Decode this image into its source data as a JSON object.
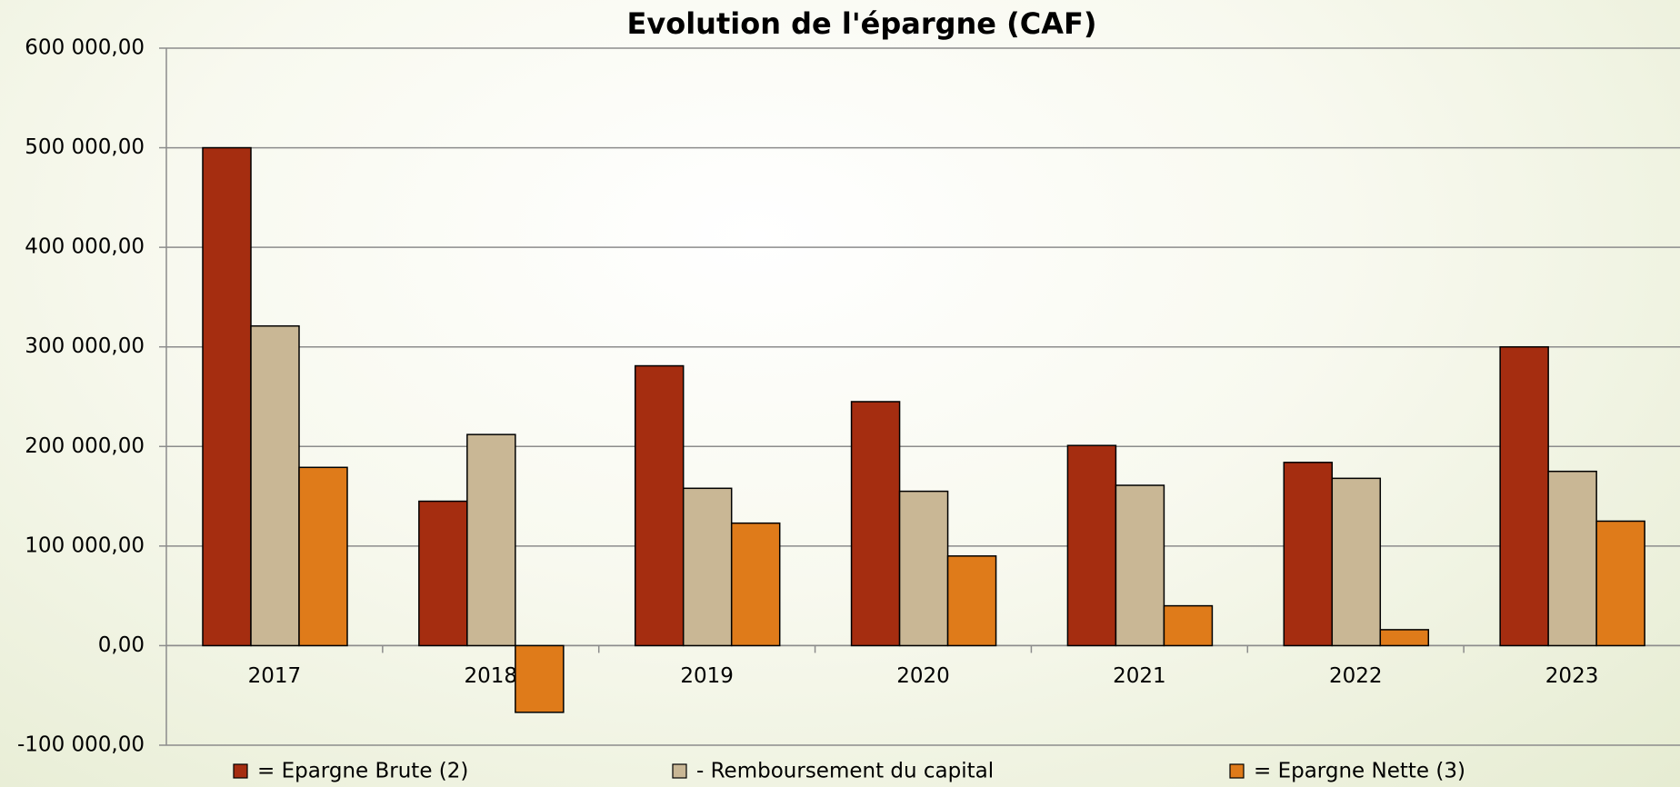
{
  "chart_data": {
    "type": "bar",
    "title": "Evolution de l'épargne (CAF)",
    "categories": [
      "2017",
      "2018",
      "2019",
      "2020",
      "2021",
      "2022",
      "2023"
    ],
    "series": [
      {
        "name": "= Epargne Brute (2)",
        "color": "#a52d10",
        "values": [
          500000,
          145000,
          281000,
          245000,
          201000,
          184000,
          300000
        ]
      },
      {
        "name": "- Remboursement du capital",
        "color": "#c9b795",
        "values": [
          321000,
          212000,
          158000,
          155000,
          161000,
          168000,
          175000
        ]
      },
      {
        "name": "= Epargne Nette (3)",
        "color": "#df7b1a",
        "values": [
          179000,
          -67000,
          123000,
          90000,
          40000,
          16000,
          125000
        ]
      }
    ],
    "ylim": [
      -100000,
      600000
    ],
    "yticks": [
      {
        "value": -100000,
        "label": "-100 000,00"
      },
      {
        "value": 0,
        "label": "0,00"
      },
      {
        "value": 100000,
        "label": "100 000,00"
      },
      {
        "value": 200000,
        "label": "200 000,00"
      },
      {
        "value": 300000,
        "label": "300 000,00"
      },
      {
        "value": 400000,
        "label": "400 000,00"
      },
      {
        "value": 500000,
        "label": "500 000,00"
      },
      {
        "value": 600000,
        "label": "600 000,00"
      }
    ],
    "grid": true,
    "legend": "bottom"
  }
}
